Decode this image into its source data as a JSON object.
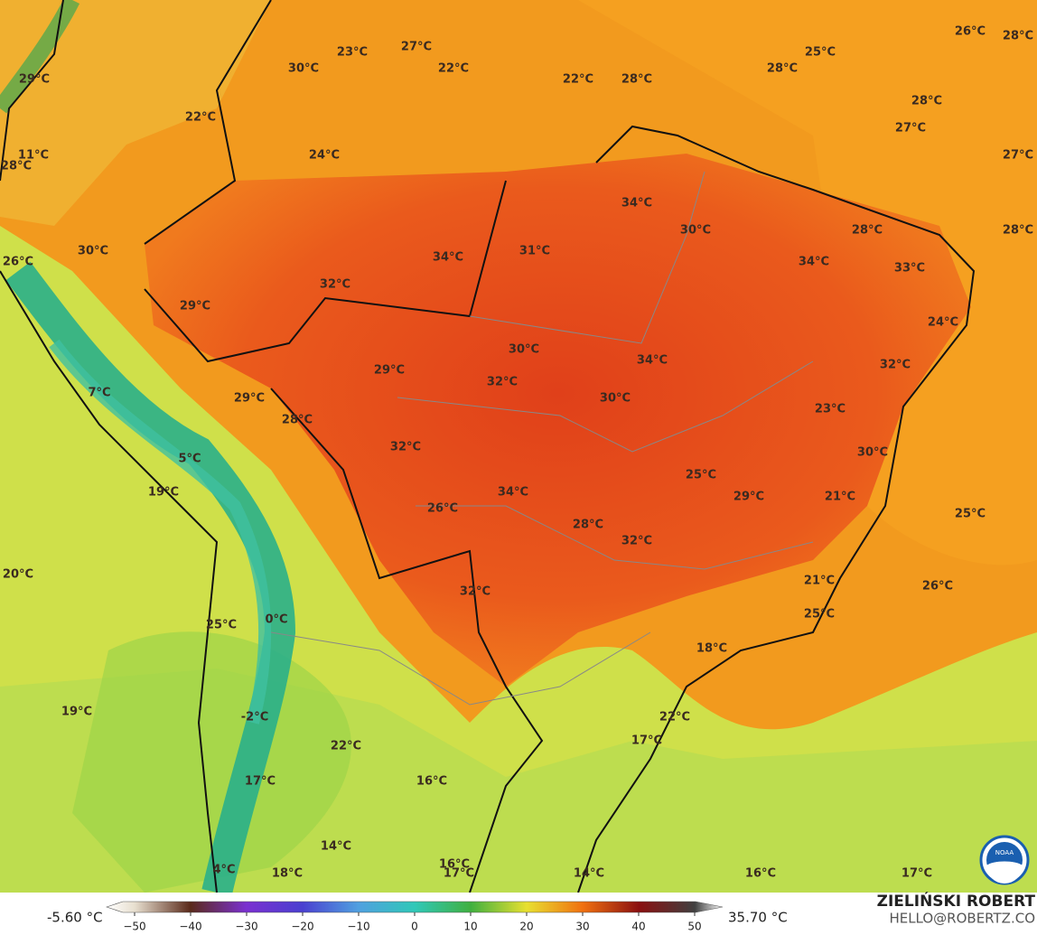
{
  "map": {
    "labels": [
      "26°C",
      "28°C",
      "27°C",
      "23°C",
      "25°C",
      "30°C",
      "22°C",
      "28°C",
      "22°C",
      "28°C",
      "29°C",
      "28°C",
      "22°C",
      "27°C",
      "24°C",
      "11°C",
      "27°C",
      "28°C",
      "34°C",
      "30°C",
      "28°C",
      "28°C",
      "31°C",
      "30°C",
      "34°C",
      "34°C",
      "26°C",
      "33°C",
      "32°C",
      "29°C",
      "24°C",
      "30°C",
      "34°C",
      "29°C",
      "32°C",
      "32°C",
      "7°C",
      "30°C",
      "29°C",
      "23°C",
      "28°C",
      "32°C",
      "30°C",
      "5°C",
      "25°C",
      "34°C",
      "19°C",
      "29°C",
      "21°C",
      "26°C",
      "25°C",
      "28°C",
      "32°C",
      "20°C",
      "21°C",
      "26°C",
      "32°C",
      "25°C",
      "0°C",
      "25°C",
      "18°C",
      "19°C",
      "22°C",
      "-2°C",
      "17°C",
      "22°C",
      "16°C",
      "17°C",
      "14°C",
      "4°C",
      "18°C",
      "16°C",
      "17°C",
      "14°C",
      "16°C",
      "17°C"
    ],
    "colorbar": {
      "min_label": "-5.60 °C",
      "max_label": "35.70 °C",
      "lim": [
        -55,
        55
      ],
      "ticks": [
        {
          "value": -50,
          "label": "−50"
        },
        {
          "value": -40,
          "label": "−40"
        },
        {
          "value": -30,
          "label": "−30"
        },
        {
          "value": -20,
          "label": "−20"
        },
        {
          "value": -10,
          "label": "−10"
        },
        0,
        10,
        20,
        30,
        40,
        50
      ]
    },
    "credit": {
      "name": "ZIELIŃSKI ROBERT",
      "contact": "HELLO@ROBERTZ.CO",
      "logo": "NOAA"
    }
  }
}
